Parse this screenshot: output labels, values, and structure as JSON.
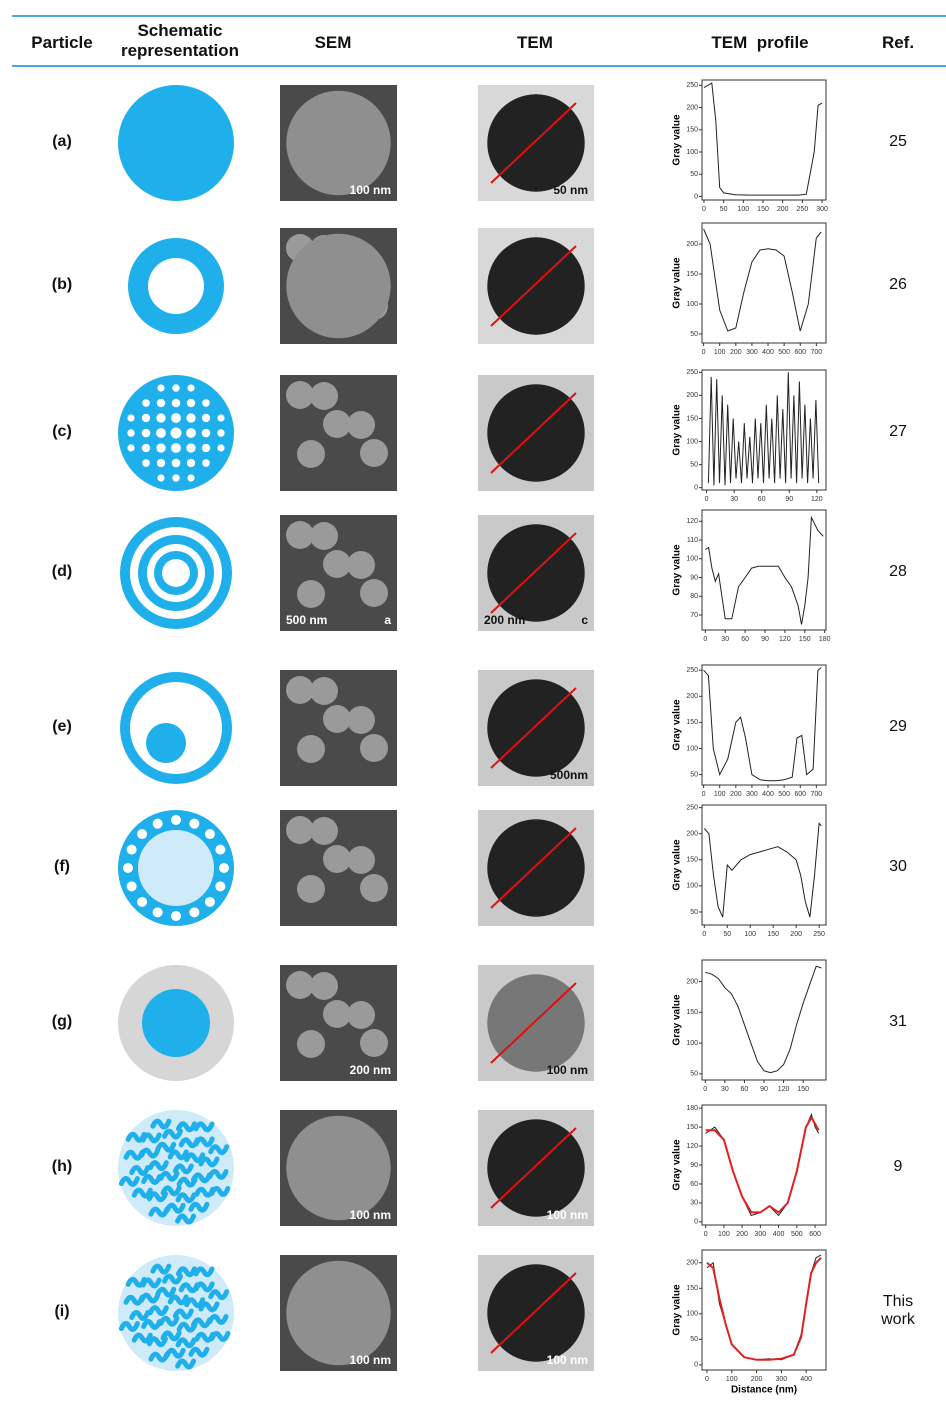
{
  "header": {
    "particle": "Particle",
    "schematic": "Schematic representation",
    "sem": "SEM",
    "tem": "TEM",
    "profile": "TEM  profile",
    "ref": "Ref."
  },
  "rows": [
    {
      "label": "(a)",
      "ref": "25",
      "sem_labels": [
        "100 nm"
      ],
      "tem_labels": [
        "50 nm"
      ],
      "profile": {
        "ylabel": "Gray value",
        "color": "#222222",
        "xlim": [
          -5,
          310
        ],
        "ylim": [
          -8,
          262
        ],
        "xticks": [
          0,
          50,
          100,
          150,
          200,
          250,
          300
        ],
        "yticks": [
          0,
          50,
          100,
          150,
          200,
          250
        ],
        "x": [
          0,
          10,
          20,
          30,
          40,
          50,
          80,
          120,
          160,
          200,
          240,
          260,
          280,
          290,
          300
        ],
        "values": [
          245,
          250,
          255,
          170,
          20,
          8,
          4,
          3,
          3,
          3,
          3,
          5,
          100,
          205,
          210
        ]
      }
    },
    {
      "label": "(b)",
      "ref": "26",
      "sem_labels": [],
      "tem_labels": [],
      "profile": {
        "ylabel": "Gray value",
        "color": "#222222",
        "xlim": [
          -10,
          760
        ],
        "ylim": [
          35,
          235
        ],
        "xticks": [
          0,
          100,
          200,
          300,
          400,
          500,
          600,
          700
        ],
        "yticks": [
          50,
          100,
          150,
          200
        ],
        "x": [
          0,
          40,
          100,
          150,
          200,
          250,
          300,
          350,
          400,
          450,
          500,
          550,
          600,
          650,
          700,
          730
        ],
        "values": [
          225,
          200,
          90,
          55,
          60,
          120,
          170,
          190,
          192,
          190,
          180,
          120,
          55,
          100,
          210,
          220
        ]
      }
    },
    {
      "label": "(c)",
      "ref": "27",
      "sem_labels": [],
      "tem_labels": [],
      "profile": {
        "ylabel": "Gray value",
        "color": "#222222",
        "xlim": [
          -5,
          130
        ],
        "ylim": [
          -5,
          255
        ],
        "xticks": [
          0,
          30,
          60,
          90,
          120
        ],
        "yticks": [
          0,
          50,
          100,
          150,
          200,
          250
        ],
        "x": [
          2,
          5,
          8,
          11,
          14,
          17,
          20,
          23,
          26,
          29,
          32,
          35,
          38,
          41,
          44,
          47,
          50,
          53,
          56,
          59,
          62,
          65,
          68,
          71,
          74,
          77,
          80,
          83,
          86,
          89,
          92,
          95,
          98,
          101,
          104,
          107,
          110,
          113,
          116,
          119,
          122
        ],
        "values": [
          10,
          240,
          5,
          235,
          10,
          200,
          5,
          180,
          10,
          150,
          20,
          100,
          10,
          140,
          20,
          110,
          10,
          150,
          20,
          140,
          10,
          180,
          20,
          150,
          10,
          200,
          20,
          170,
          10,
          250,
          20,
          200,
          10,
          230,
          20,
          180,
          10,
          150,
          20,
          190,
          10
        ]
      }
    },
    {
      "label": "(d)",
      "ref": "28",
      "sem_labels": [
        "500 nm",
        "a"
      ],
      "tem_labels": [
        "200 nm",
        "c"
      ],
      "profile": {
        "ylabel": "Gray value",
        "color": "#222222",
        "xlim": [
          -5,
          182
        ],
        "ylim": [
          62,
          126
        ],
        "xticks": [
          0,
          30,
          60,
          90,
          120,
          150,
          180
        ],
        "yticks": [
          70,
          80,
          90,
          100,
          110,
          120
        ],
        "x": [
          0,
          5,
          10,
          15,
          20,
          25,
          30,
          40,
          50,
          60,
          70,
          80,
          90,
          100,
          110,
          120,
          130,
          135,
          140,
          145,
          150,
          155,
          160,
          170,
          178
        ],
        "values": [
          105,
          106,
          95,
          88,
          92,
          80,
          68,
          68,
          85,
          90,
          95,
          96,
          96,
          96,
          96,
          90,
          85,
          80,
          75,
          65,
          75,
          90,
          122,
          115,
          112
        ]
      }
    },
    {
      "label": "(e)",
      "ref": "29",
      "sem_labels": [],
      "tem_labels": [
        "500nm"
      ],
      "profile": {
        "ylabel": "Gray value",
        "color": "#222222",
        "xlim": [
          -10,
          760
        ],
        "ylim": [
          30,
          260
        ],
        "xticks": [
          0,
          100,
          200,
          300,
          400,
          500,
          600,
          700
        ],
        "yticks": [
          50,
          100,
          150,
          200,
          250
        ],
        "x": [
          0,
          30,
          60,
          100,
          150,
          200,
          230,
          260,
          300,
          350,
          400,
          450,
          500,
          550,
          580,
          610,
          640,
          680,
          710,
          730
        ],
        "values": [
          250,
          240,
          100,
          50,
          80,
          150,
          160,
          120,
          50,
          40,
          38,
          38,
          40,
          45,
          120,
          125,
          50,
          60,
          250,
          255
        ]
      }
    },
    {
      "label": "(f)",
      "ref": "30",
      "sem_labels": [],
      "tem_labels": [],
      "profile": {
        "ylabel": "Gray value",
        "color": "#222222",
        "xlim": [
          -5,
          265
        ],
        "ylim": [
          25,
          255
        ],
        "xticks": [
          0,
          50,
          100,
          150,
          200,
          250
        ],
        "yticks": [
          50,
          100,
          150,
          200,
          250
        ],
        "x": [
          0,
          10,
          20,
          30,
          40,
          50,
          60,
          80,
          100,
          120,
          140,
          160,
          180,
          200,
          210,
          220,
          230,
          240,
          250,
          255
        ],
        "values": [
          210,
          200,
          120,
          60,
          40,
          140,
          130,
          150,
          160,
          165,
          170,
          175,
          165,
          150,
          120,
          70,
          40,
          120,
          220,
          215
        ]
      }
    },
    {
      "label": "(g)",
      "ref": "31",
      "sem_labels": [
        "200 nm"
      ],
      "tem_labels": [
        "100 nm"
      ],
      "profile": {
        "ylabel": "Gray value",
        "color": "#222222",
        "xlim": [
          -5,
          185
        ],
        "ylim": [
          40,
          235
        ],
        "xticks": [
          0,
          30,
          60,
          90,
          120,
          150
        ],
        "yticks": [
          50,
          100,
          150,
          200
        ],
        "x": [
          0,
          10,
          20,
          30,
          40,
          50,
          60,
          70,
          80,
          90,
          100,
          110,
          120,
          130,
          140,
          150,
          160,
          170,
          178
        ],
        "values": [
          215,
          212,
          205,
          190,
          180,
          160,
          130,
          100,
          70,
          55,
          52,
          55,
          65,
          90,
          130,
          165,
          195,
          225,
          222
        ]
      }
    },
    {
      "label": "(h)",
      "ref": "9",
      "sem_labels": [
        "100 nm"
      ],
      "tem_labels": [
        "100 nm"
      ],
      "profile": {
        "ylabel": "Gray value",
        "color": "#222222",
        "fit_color": "#e02020",
        "xlim": [
          -20,
          660
        ],
        "ylim": [
          -5,
          185
        ],
        "xticks": [
          0,
          100,
          200,
          300,
          400,
          500,
          600
        ],
        "yticks": [
          0,
          30,
          60,
          90,
          120,
          150,
          180
        ],
        "x": [
          0,
          50,
          100,
          150,
          200,
          250,
          300,
          350,
          400,
          450,
          500,
          550,
          580,
          600,
          620
        ],
        "values": [
          140,
          150,
          130,
          80,
          40,
          10,
          15,
          25,
          10,
          30,
          80,
          150,
          170,
          150,
          140
        ],
        "fit": [
          145,
          145,
          130,
          80,
          40,
          15,
          15,
          25,
          15,
          30,
          80,
          150,
          165,
          155,
          145
        ]
      }
    },
    {
      "label": "(i)",
      "ref": "This work",
      "sem_labels": [
        "100 nm"
      ],
      "tem_labels": [
        "100 nm"
      ],
      "profile": {
        "ylabel": "Gray value",
        "xlabel": "Distance (nm)",
        "color": "#222222",
        "fit_color": "#e02020",
        "xlim": [
          -20,
          480
        ],
        "ylim": [
          -10,
          225
        ],
        "xticks": [
          0,
          100,
          200,
          300,
          400
        ],
        "yticks": [
          0,
          50,
          100,
          150,
          200
        ],
        "x": [
          0,
          25,
          50,
          75,
          100,
          150,
          200,
          250,
          300,
          350,
          380,
          400,
          420,
          440,
          460
        ],
        "values": [
          190,
          200,
          120,
          80,
          40,
          15,
          10,
          12,
          10,
          20,
          60,
          120,
          180,
          210,
          215
        ],
        "fit": [
          200,
          190,
          130,
          80,
          40,
          15,
          10,
          10,
          12,
          20,
          55,
          120,
          180,
          200,
          210
        ]
      }
    }
  ]
}
